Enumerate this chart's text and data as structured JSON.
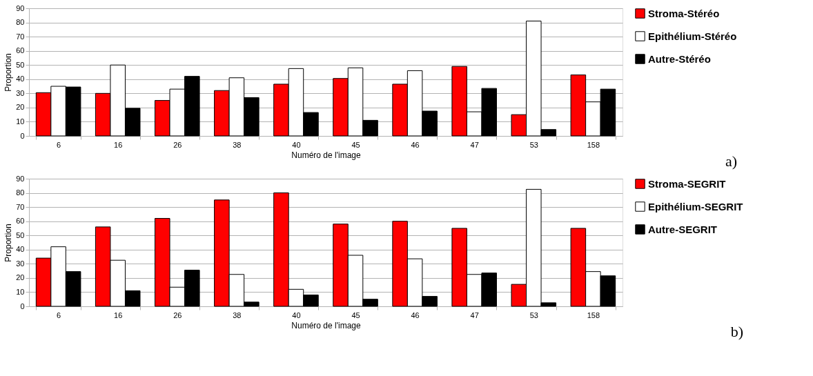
{
  "chart_data": [
    {
      "type": "bar",
      "xlabel": "Numéro de l'image",
      "ylabel": "Proportion",
      "categories": [
        "6",
        "16",
        "26",
        "38",
        "40",
        "45",
        "46",
        "47",
        "53",
        "158"
      ],
      "ylim": [
        0,
        90
      ],
      "yticks": [
        0,
        10,
        20,
        30,
        40,
        50,
        60,
        70,
        80,
        90
      ],
      "grid": "y",
      "legend": "right",
      "annotations": [
        "a)"
      ],
      "series": [
        {
          "name": "Stroma-Stéréo",
          "color": "#ff0000",
          "values": [
            30.5,
            30,
            25,
            32,
            36.5,
            40.5,
            36.5,
            49,
            15,
            43
          ]
        },
        {
          "name": "Epithélium-Stéréo",
          "color": "#ffffff",
          "values": [
            35,
            50,
            33,
            41,
            47.5,
            48,
            46,
            17,
            81,
            24
          ]
        },
        {
          "name": "Autre-Stéréo",
          "color": "#000000",
          "values": [
            34.5,
            19.5,
            42,
            27,
            16.5,
            11,
            17.5,
            33.5,
            4.5,
            33
          ]
        }
      ]
    },
    {
      "type": "bar",
      "xlabel": "Numéro de l'image",
      "ylabel": "Proportion",
      "categories": [
        "6",
        "16",
        "26",
        "38",
        "40",
        "45",
        "46",
        "47",
        "53",
        "158"
      ],
      "ylim": [
        0,
        90
      ],
      "yticks": [
        0,
        10,
        20,
        30,
        40,
        50,
        60,
        70,
        80,
        90
      ],
      "grid": "y",
      "legend": "right",
      "annotations": [
        "b)"
      ],
      "series": [
        {
          "name": "Stroma-SEGRIT",
          "color": "#ff0000",
          "values": [
            34,
            56,
            62,
            75,
            80,
            58,
            60,
            55,
            15.5,
            55
          ]
        },
        {
          "name": "Epithélium-SEGRIT",
          "color": "#ffffff",
          "values": [
            42,
            32.5,
            13.5,
            22.5,
            12,
            36,
            33.5,
            22.5,
            82.5,
            24.5
          ]
        },
        {
          "name": "Autre-SEGRIT",
          "color": "#000000",
          "values": [
            24.5,
            11,
            25.5,
            3,
            8,
            5,
            7,
            23.5,
            2.5,
            21.5
          ]
        }
      ]
    }
  ]
}
